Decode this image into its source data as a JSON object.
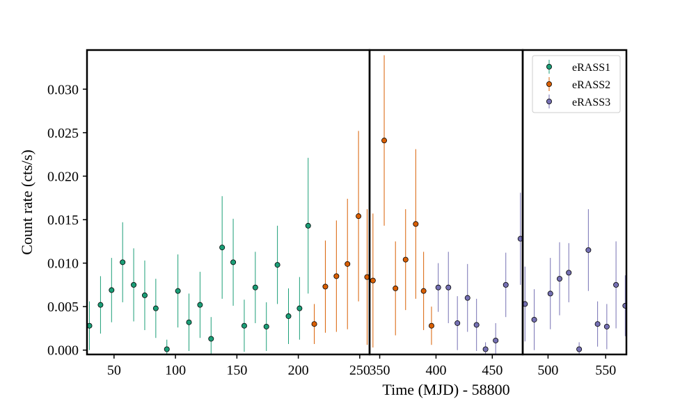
{
  "chart_data": {
    "type": "scatter",
    "title": "",
    "xlabel": "Time (MJD) - 58800",
    "ylabel": "Count rate (cts/s)",
    "ylim": [
      -0.0005,
      0.0345
    ],
    "yticks": [
      0.0,
      0.005,
      0.01,
      0.015,
      0.02,
      0.025,
      0.03
    ],
    "ytick_labels": [
      "0.000",
      "0.005",
      "0.010",
      "0.015",
      "0.020",
      "0.025",
      "0.030"
    ],
    "grid": false,
    "legend_position": "top-right",
    "panels": [
      {
        "xlim": [
          28,
          258
        ],
        "xticks": [
          50,
          100,
          150,
          200,
          250
        ],
        "xtick_labels": [
          "50",
          "100",
          "150",
          "200",
          "250"
        ]
      },
      {
        "xlim": [
          341,
          477
        ],
        "xticks": [
          350,
          400,
          450
        ],
        "xtick_labels": [
          "350",
          "400",
          "450"
        ]
      },
      {
        "xlim": [
          478,
          568
        ],
        "xticks": [
          500,
          550
        ],
        "xtick_labels": [
          "500",
          "550"
        ]
      }
    ],
    "series": [
      {
        "name": "eRASS1",
        "color": "#1b9e77",
        "points": [
          {
            "x": 30,
            "y": 0.0028,
            "err": 0.0028
          },
          {
            "x": 39,
            "y": 0.0052,
            "err": 0.0033
          },
          {
            "x": 48,
            "y": 0.0069,
            "err": 0.0037
          },
          {
            "x": 57,
            "y": 0.0101,
            "err": 0.0046
          },
          {
            "x": 66,
            "y": 0.0075,
            "err": 0.0042
          },
          {
            "x": 75,
            "y": 0.0063,
            "err": 0.004
          },
          {
            "x": 84,
            "y": 0.0048,
            "err": 0.0034
          },
          {
            "x": 93,
            "y": 0.0001,
            "err": 0.0011
          },
          {
            "x": 102,
            "y": 0.0068,
            "err": 0.0042
          },
          {
            "x": 111,
            "y": 0.0032,
            "err": 0.0033
          },
          {
            "x": 120,
            "y": 0.0052,
            "err": 0.0038
          },
          {
            "x": 129,
            "y": 0.0013,
            "err": 0.0025
          },
          {
            "x": 138,
            "y": 0.0118,
            "err": 0.0059
          },
          {
            "x": 147,
            "y": 0.0101,
            "err": 0.005
          },
          {
            "x": 156,
            "y": 0.0028,
            "err": 0.003
          },
          {
            "x": 165,
            "y": 0.0072,
            "err": 0.0041
          },
          {
            "x": 174,
            "y": 0.0027,
            "err": 0.0028
          },
          {
            "x": 183,
            "y": 0.0098,
            "err": 0.0045
          },
          {
            "x": 192,
            "y": 0.0039,
            "err": 0.0032
          },
          {
            "x": 201,
            "y": 0.0048,
            "err": 0.0036
          },
          {
            "x": 208,
            "y": 0.0143,
            "err": 0.0078
          }
        ]
      },
      {
        "name": "eRASS2",
        "color": "#d95f02",
        "points": [
          {
            "x": 213,
            "y": 0.003,
            "err": 0.0023
          },
          {
            "x": 222,
            "y": 0.0073,
            "err": 0.0053
          },
          {
            "x": 231,
            "y": 0.0085,
            "err": 0.0064
          },
          {
            "x": 240,
            "y": 0.0099,
            "err": 0.0075
          },
          {
            "x": 249,
            "y": 0.0154,
            "err": 0.0098
          },
          {
            "x": 256,
            "y": 0.0084,
            "err": 0.0078
          },
          {
            "x": 344,
            "y": 0.008,
            "err": 0.0077
          },
          {
            "x": 354,
            "y": 0.0241,
            "err": 0.0098
          },
          {
            "x": 364,
            "y": 0.0071,
            "err": 0.0054
          },
          {
            "x": 373,
            "y": 0.0104,
            "err": 0.0058
          },
          {
            "x": 382,
            "y": 0.0145,
            "err": 0.0086
          },
          {
            "x": 389,
            "y": 0.0068,
            "err": 0.0045
          },
          {
            "x": 396,
            "y": 0.0028,
            "err": 0.0022
          }
        ]
      },
      {
        "name": "eRASS3",
        "color": "#7570b3",
        "points": [
          {
            "x": 402,
            "y": 0.0072,
            "err": 0.0028
          },
          {
            "x": 411,
            "y": 0.0072,
            "err": 0.0041
          },
          {
            "x": 419,
            "y": 0.0031,
            "err": 0.0031
          },
          {
            "x": 428,
            "y": 0.006,
            "err": 0.0039
          },
          {
            "x": 436,
            "y": 0.0029,
            "err": 0.003
          },
          {
            "x": 444,
            "y": 0.0001,
            "err": 0.0008
          },
          {
            "x": 453,
            "y": 0.0011,
            "err": 0.002
          },
          {
            "x": 462,
            "y": 0.0075,
            "err": 0.0037
          },
          {
            "x": 475,
            "y": 0.0128,
            "err": 0.0053
          },
          {
            "x": 480,
            "y": 0.0053,
            "err": 0.0043
          },
          {
            "x": 488,
            "y": 0.0035,
            "err": 0.0035
          },
          {
            "x": 502,
            "y": 0.0065,
            "err": 0.0041
          },
          {
            "x": 510,
            "y": 0.0082,
            "err": 0.0042
          },
          {
            "x": 518,
            "y": 0.0089,
            "err": 0.0034
          },
          {
            "x": 527,
            "y": 0.0001,
            "err": 0.0008
          },
          {
            "x": 535,
            "y": 0.0115,
            "err": 0.0047
          },
          {
            "x": 543,
            "y": 0.003,
            "err": 0.0026
          },
          {
            "x": 551,
            "y": 0.0027,
            "err": 0.0026
          },
          {
            "x": 559,
            "y": 0.0075,
            "err": 0.005
          },
          {
            "x": 567,
            "y": 0.0051,
            "err": 0.0035
          }
        ]
      }
    ]
  }
}
